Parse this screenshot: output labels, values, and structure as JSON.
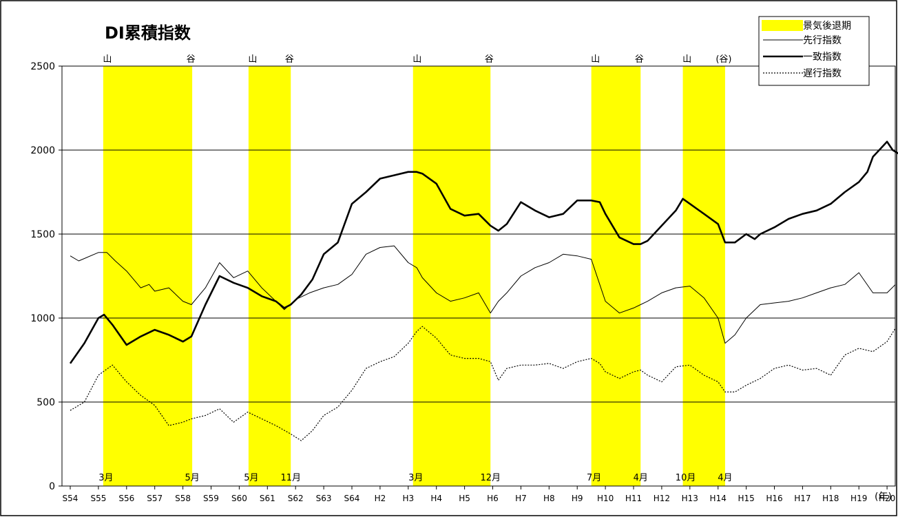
{
  "chart_data": {
    "type": "line",
    "title": "DI累積指数",
    "x_unit_label": "(年)",
    "x_ticks": [
      "S54",
      "S55",
      "S56",
      "S57",
      "S58",
      "S59",
      "S60",
      "S61",
      "S62",
      "S63",
      "S64",
      "H2",
      "H3",
      "H4",
      "H5",
      "H6",
      "H7",
      "H8",
      "H9",
      "H10",
      "H11",
      "H12",
      "H13",
      "H14",
      "H15",
      "H16",
      "H17",
      "H18",
      "H19",
      "H20"
    ],
    "ylim": [
      0,
      2500
    ],
    "y_ticks": [
      0,
      500,
      1000,
      1500,
      2000,
      2500
    ],
    "grid": "horizontal",
    "legend_position": "top-right",
    "legend": {
      "recession": "景気後退期",
      "leading": "先行指数",
      "coincident": "一致指数",
      "lagging": "遅行指数"
    },
    "recessions": [
      {
        "start": 1.17,
        "end": 4.33,
        "peak_label": "山",
        "trough_label": "谷",
        "start_month": "3月",
        "end_month": "5月"
      },
      {
        "start": 6.33,
        "end": 7.83,
        "peak_label": "山",
        "trough_label": "谷",
        "start_month": "5月",
        "end_month": "11月"
      },
      {
        "start": 12.17,
        "end": 14.92,
        "peak_label": "山",
        "trough_label": "谷",
        "start_month": "3月",
        "end_month": "12月"
      },
      {
        "start": 18.5,
        "end": 20.25,
        "peak_label": "山",
        "trough_label": "谷",
        "start_month": "7月",
        "end_month": "4月"
      },
      {
        "start": 21.75,
        "end": 23.25,
        "peak_label": "山",
        "trough_label": "(谷)",
        "start_month": "10月",
        "end_month": "4月"
      }
    ],
    "series": [
      {
        "name": "先行指数",
        "style": "thin",
        "x": [
          0,
          0.3,
          1.0,
          1.3,
          1.6,
          2.0,
          2.5,
          2.8,
          3.0,
          3.5,
          4.0,
          4.3,
          4.8,
          5.3,
          5.8,
          6.3,
          6.8,
          7.3,
          7.6,
          8.0,
          8.5,
          9.0,
          9.5,
          10.0,
          10.5,
          11.0,
          11.5,
          12.0,
          12.3,
          12.5,
          13.0,
          13.5,
          14.0,
          14.5,
          14.92,
          15.2,
          15.5,
          16.0,
          16.5,
          17.0,
          17.5,
          18.0,
          18.5,
          18.8,
          19.0,
          19.5,
          20.0,
          20.25,
          20.5,
          21.0,
          21.5,
          22.0,
          22.5,
          23.0,
          23.25,
          23.6,
          24.0,
          24.5,
          25.0,
          25.5,
          26.0,
          26.5,
          27.0,
          27.5,
          28.0,
          28.5,
          29.0,
          29.3
        ],
        "values": [
          1370,
          1340,
          1390,
          1390,
          1340,
          1280,
          1180,
          1200,
          1160,
          1180,
          1100,
          1080,
          1180,
          1330,
          1240,
          1280,
          1180,
          1100,
          1050,
          1110,
          1150,
          1180,
          1200,
          1260,
          1380,
          1420,
          1430,
          1330,
          1300,
          1240,
          1150,
          1100,
          1120,
          1150,
          1030,
          1100,
          1150,
          1250,
          1300,
          1330,
          1380,
          1370,
          1350,
          1200,
          1100,
          1030,
          1060,
          1080,
          1100,
          1150,
          1180,
          1190,
          1120,
          1000,
          850,
          900,
          1000,
          1080,
          1090,
          1100,
          1120,
          1150,
          1180,
          1200,
          1270,
          1150,
          1150,
          1200
        ]
      },
      {
        "name": "一致指数",
        "style": "thick",
        "x": [
          0,
          0.5,
          1.0,
          1.2,
          1.5,
          2.0,
          2.5,
          3.0,
          3.5,
          4.0,
          4.3,
          4.8,
          5.3,
          5.8,
          6.3,
          6.8,
          7.3,
          7.6,
          7.83,
          8.2,
          8.6,
          9.0,
          9.5,
          10.0,
          10.5,
          11.0,
          11.5,
          12.0,
          12.3,
          12.5,
          13.0,
          13.5,
          14.0,
          14.5,
          14.92,
          15.2,
          15.5,
          16.0,
          16.5,
          17.0,
          17.5,
          18.0,
          18.5,
          18.8,
          19.0,
          19.5,
          20.0,
          20.25,
          20.5,
          21.0,
          21.5,
          21.75,
          22.0,
          22.5,
          23.0,
          23.25,
          23.6,
          24.0,
          24.3,
          24.5,
          25.0,
          25.5,
          26.0,
          26.5,
          27.0,
          27.5,
          28.0,
          28.3,
          28.5,
          29.0,
          29.2,
          29.4
        ],
        "values": [
          730,
          850,
          1000,
          1020,
          960,
          840,
          890,
          930,
          900,
          860,
          890,
          1080,
          1250,
          1210,
          1180,
          1130,
          1100,
          1060,
          1080,
          1140,
          1230,
          1380,
          1450,
          1680,
          1750,
          1830,
          1850,
          1870,
          1870,
          1860,
          1800,
          1650,
          1610,
          1620,
          1550,
          1520,
          1560,
          1690,
          1640,
          1600,
          1620,
          1700,
          1700,
          1690,
          1620,
          1480,
          1440,
          1440,
          1460,
          1550,
          1640,
          1710,
          1680,
          1620,
          1560,
          1450,
          1450,
          1500,
          1470,
          1500,
          1540,
          1590,
          1620,
          1640,
          1680,
          1750,
          1810,
          1870,
          1960,
          2050,
          2000,
          1980
        ]
      },
      {
        "name": "遅行指数",
        "style": "dotted",
        "x": [
          0,
          0.5,
          1.0,
          1.5,
          2.0,
          2.5,
          3.0,
          3.5,
          4.0,
          4.3,
          4.8,
          5.3,
          5.8,
          6.3,
          6.8,
          7.3,
          7.83,
          8.2,
          8.6,
          9.0,
          9.5,
          10.0,
          10.5,
          11.0,
          11.5,
          12.0,
          12.3,
          12.5,
          13.0,
          13.5,
          14.0,
          14.5,
          14.92,
          15.2,
          15.5,
          16.0,
          16.5,
          17.0,
          17.5,
          18.0,
          18.5,
          18.8,
          19.0,
          19.5,
          20.0,
          20.25,
          20.5,
          21.0,
          21.5,
          22.0,
          22.5,
          23.0,
          23.25,
          23.6,
          24.0,
          24.5,
          25.0,
          25.5,
          26.0,
          26.5,
          27.0,
          27.5,
          28.0,
          28.5,
          29.0,
          29.3
        ],
        "values": [
          450,
          500,
          660,
          720,
          620,
          540,
          480,
          360,
          380,
          400,
          420,
          460,
          380,
          440,
          400,
          360,
          310,
          270,
          330,
          420,
          470,
          570,
          700,
          740,
          770,
          850,
          920,
          950,
          880,
          780,
          760,
          760,
          740,
          630,
          700,
          720,
          720,
          730,
          700,
          740,
          760,
          730,
          680,
          640,
          680,
          690,
          660,
          620,
          710,
          720,
          660,
          620,
          560,
          560,
          600,
          640,
          700,
          720,
          690,
          700,
          660,
          780,
          820,
          800,
          860,
          940
        ]
      }
    ]
  }
}
